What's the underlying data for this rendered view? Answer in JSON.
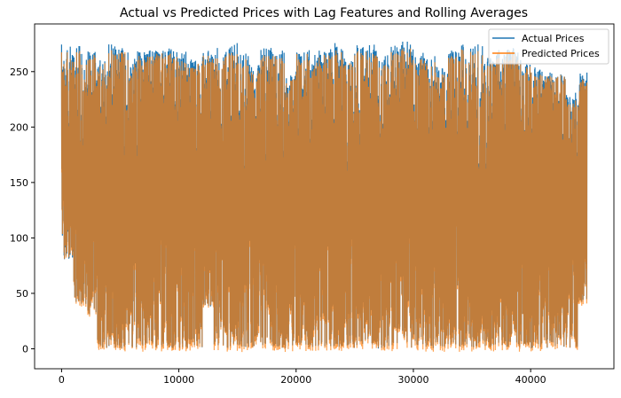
{
  "chart_data": {
    "type": "line",
    "title": "Actual vs Predicted Prices with Lag Features and Rolling Averages",
    "xlabel": "",
    "ylabel": "",
    "xlim": [
      -2300,
      47100
    ],
    "ylim": [
      -18,
      293
    ],
    "x_ticks": [
      0,
      10000,
      20000,
      30000,
      40000
    ],
    "x_tick_labels": [
      "0",
      "10000",
      "20000",
      "30000",
      "40000"
    ],
    "y_ticks": [
      0,
      50,
      100,
      150,
      200,
      250
    ],
    "y_tick_labels": [
      "0",
      "50",
      "100",
      "150",
      "200",
      "250"
    ],
    "grid": false,
    "legend": "top-right",
    "bin_size": 1000,
    "x_end": 44800,
    "series": [
      {
        "name": "Actual Prices",
        "color": "#1f77b4",
        "bin_max": [
          275,
          278,
          272,
          265,
          276,
          272,
          270,
          270,
          272,
          274,
          268,
          262,
          270,
          272,
          276,
          268,
          258,
          275,
          270,
          248,
          272,
          270,
          272,
          276,
          262,
          275,
          276,
          265,
          276,
          278,
          268,
          265,
          255,
          270,
          275,
          276,
          265,
          270,
          272,
          262,
          255,
          250,
          250,
          235,
          250
        ],
        "bin_min": [
          80,
          40,
          30,
          0,
          0,
          0,
          0,
          0,
          0,
          0,
          0,
          0,
          38,
          0,
          0,
          0,
          0,
          0,
          0,
          0,
          0,
          0,
          0,
          0,
          0,
          0,
          0,
          0,
          0,
          0,
          0,
          0,
          0,
          0,
          0,
          0,
          0,
          0,
          0,
          0,
          0,
          0,
          0,
          0,
          40
        ]
      },
      {
        "name": "Predicted Prices",
        "color": "#ff7f0e",
        "bin_max": [
          268,
          272,
          266,
          260,
          270,
          268,
          265,
          265,
          268,
          270,
          262,
          258,
          266,
          268,
          270,
          262,
          252,
          268,
          265,
          244,
          266,
          265,
          266,
          270,
          258,
          270,
          270,
          260,
          270,
          272,
          262,
          260,
          250,
          265,
          270,
          270,
          260,
          265,
          266,
          258,
          250,
          248,
          248,
          230,
          246
        ],
        "bin_min": [
          80,
          38,
          28,
          -3,
          -3,
          -3,
          -3,
          -3,
          -3,
          -3,
          -3,
          -3,
          36,
          -3,
          -3,
          -3,
          -3,
          -3,
          -3,
          -3,
          -3,
          -3,
          -3,
          -3,
          -3,
          -3,
          -3,
          -3,
          -3,
          -3,
          -3,
          -3,
          -3,
          -3,
          -3,
          -3,
          -3,
          -3,
          -3,
          -3,
          -3,
          -3,
          -3,
          -3,
          38
        ]
      }
    ]
  }
}
